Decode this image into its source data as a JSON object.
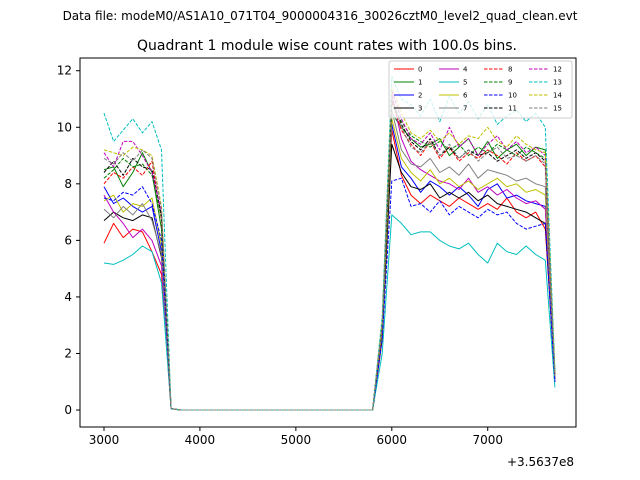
{
  "chart_data": {
    "type": "line",
    "suptitle": "Data file: modeM0/AS1A10_071T04_9000004316_30026cztM0_level2_quad_clean.evt",
    "title": "Quadrant 1 module wise count rates with 100.0s bins.",
    "xlabel": "",
    "ylabel": "",
    "x_offset_label": "+3.5637e8",
    "xlim": [
      2750,
      7920
    ],
    "ylim": [
      -0.6,
      12.45
    ],
    "xticks": [
      "3000",
      "4000",
      "5000",
      "6000",
      "7000"
    ],
    "xtick_values": [
      3000,
      4000,
      5000,
      6000,
      7000
    ],
    "yticks": [
      "0",
      "2",
      "4",
      "6",
      "8",
      "10",
      "12"
    ],
    "ytick_values": [
      0,
      2,
      4,
      6,
      8,
      10,
      12
    ],
    "legend_placement": "top-right",
    "gap_x": [
      3700,
      5770
    ],
    "x": [
      3000,
      3100,
      3200,
      3300,
      3400,
      3500,
      3600,
      3700,
      3800,
      5700,
      5800,
      5900,
      6000,
      6100,
      6200,
      6300,
      6400,
      6500,
      6600,
      6700,
      6800,
      6900,
      7000,
      7100,
      7200,
      7300,
      7400,
      7500,
      7600,
      7700
    ],
    "series": [
      {
        "name": "0",
        "color": "#ff0000",
        "dash": "solid",
        "values": [
          5.9,
          6.6,
          6.1,
          6.4,
          6.3,
          5.6,
          4.8,
          0.05,
          0,
          0,
          0,
          2.5,
          9.9,
          8.3,
          7.6,
          7.3,
          7.6,
          7.4,
          7.2,
          7.5,
          7.3,
          7.1,
          7.3,
          7.1,
          7.5,
          7.0,
          6.8,
          7.0,
          6.4,
          1.2
        ]
      },
      {
        "name": "1",
        "color": "#008000",
        "dash": "solid",
        "values": [
          8.5,
          8.6,
          7.9,
          8.4,
          9.1,
          8.4,
          6.4,
          0.05,
          0,
          0,
          0,
          3.0,
          10.5,
          10.0,
          9.6,
          9.3,
          9.4,
          9.6,
          9.0,
          9.3,
          9.6,
          9.0,
          9.5,
          8.9,
          9.2,
          9.4,
          9.0,
          9.3,
          9.2,
          1.2
        ]
      },
      {
        "name": "2",
        "color": "#0000ff",
        "dash": "solid",
        "values": [
          7.9,
          7.3,
          7.5,
          7.2,
          7.0,
          7.2,
          5.6,
          0.05,
          0,
          0,
          0,
          2.7,
          10.1,
          8.6,
          8.2,
          7.7,
          8.1,
          7.9,
          7.6,
          7.9,
          7.6,
          7.2,
          7.8,
          8.0,
          7.5,
          7.6,
          7.4,
          7.3,
          7.2,
          1.0
        ]
      },
      {
        "name": "3",
        "color": "#000000",
        "dash": "solid",
        "values": [
          6.7,
          7.0,
          6.8,
          6.7,
          6.9,
          6.8,
          5.4,
          0.05,
          0,
          0,
          0,
          2.6,
          9.4,
          8.4,
          7.9,
          7.8,
          8.0,
          7.5,
          7.7,
          7.5,
          7.7,
          7.4,
          7.6,
          7.3,
          7.2,
          7.1,
          7.0,
          6.8,
          6.6,
          1.1
        ]
      },
      {
        "name": "4",
        "color": "#bf00bf",
        "dash": "solid",
        "values": [
          7.6,
          7.0,
          6.6,
          6.1,
          6.4,
          6.0,
          5.1,
          0.05,
          0,
          0,
          0,
          3.0,
          11.2,
          9.6,
          8.8,
          8.5,
          8.3,
          8.1,
          8.0,
          7.8,
          8.2,
          7.7,
          7.9,
          7.6,
          7.8,
          7.5,
          7.3,
          7.4,
          7.1,
          1.0
        ]
      },
      {
        "name": "5",
        "color": "#00bfbf",
        "dash": "solid",
        "values": [
          5.2,
          5.15,
          5.3,
          5.5,
          5.8,
          5.6,
          4.5,
          0.05,
          0,
          0,
          0,
          2.0,
          6.9,
          6.6,
          6.2,
          6.3,
          6.3,
          6.0,
          5.8,
          5.7,
          5.9,
          5.5,
          5.2,
          5.9,
          5.6,
          5.5,
          5.8,
          5.5,
          5.3,
          0.8
        ]
      },
      {
        "name": "6",
        "color": "#bfbf00",
        "dash": "solid",
        "values": [
          7.4,
          7.6,
          7.0,
          7.3,
          7.2,
          7.5,
          5.8,
          0.05,
          0,
          0,
          0,
          2.8,
          10.3,
          8.9,
          8.4,
          8.1,
          8.5,
          8.0,
          8.2,
          7.9,
          8.1,
          7.8,
          8.0,
          8.2,
          7.9,
          8.0,
          7.7,
          7.8,
          7.6,
          1.1
        ]
      },
      {
        "name": "7",
        "color": "#808080",
        "dash": "solid",
        "values": [
          7.1,
          6.8,
          7.2,
          6.9,
          7.3,
          6.7,
          5.5,
          0.05,
          0,
          0,
          0,
          2.9,
          10.6,
          9.2,
          8.7,
          8.6,
          8.9,
          8.4,
          8.6,
          8.3,
          8.7,
          8.2,
          8.5,
          8.4,
          8.3,
          8.1,
          8.2,
          8.0,
          7.9,
          1.1
        ]
      },
      {
        "name": "8",
        "color": "#ff0000",
        "dash": "dashed",
        "values": [
          8.0,
          8.4,
          8.2,
          8.6,
          8.3,
          8.8,
          6.7,
          0.05,
          0,
          0,
          0,
          3.0,
          10.9,
          9.9,
          9.4,
          9.0,
          9.5,
          8.9,
          9.3,
          8.8,
          9.1,
          8.9,
          9.2,
          9.0,
          8.7,
          9.1,
          8.8,
          9.0,
          8.6,
          1.3
        ]
      },
      {
        "name": "9",
        "color": "#008000",
        "dash": "dashed",
        "values": [
          8.2,
          8.5,
          8.9,
          8.6,
          8.7,
          8.3,
          6.8,
          0.05,
          0,
          0,
          0,
          3.1,
          10.8,
          10.2,
          9.7,
          9.5,
          9.3,
          9.5,
          9.2,
          9.4,
          9.0,
          9.3,
          9.1,
          9.4,
          9.2,
          9.0,
          9.3,
          9.1,
          8.9,
          1.3
        ]
      },
      {
        "name": "10",
        "color": "#0000ff",
        "dash": "dashed",
        "values": [
          7.5,
          7.4,
          7.7,
          7.6,
          7.9,
          7.3,
          6.0,
          0.05,
          0,
          0,
          0,
          2.5,
          8.1,
          8.2,
          7.2,
          7.3,
          7.0,
          7.4,
          6.9,
          7.2,
          7.0,
          6.8,
          7.1,
          6.9,
          7.0,
          6.6,
          6.4,
          6.5,
          6.6,
          1.0
        ]
      },
      {
        "name": "11",
        "color": "#000000",
        "dash": "dashed",
        "values": [
          8.4,
          8.8,
          8.3,
          8.9,
          8.6,
          8.5,
          6.9,
          0.05,
          0,
          0,
          0,
          3.1,
          11.0,
          10.1,
          9.5,
          9.2,
          9.6,
          9.0,
          9.3,
          8.9,
          9.2,
          9.0,
          9.1,
          8.8,
          9.0,
          9.2,
          8.9,
          9.1,
          8.8,
          1.3
        ]
      },
      {
        "name": "12",
        "color": "#bf00bf",
        "dash": "dashed",
        "values": [
          9.1,
          8.6,
          9.5,
          9.5,
          9.0,
          8.4,
          7.0,
          0.05,
          0,
          0,
          0,
          3.1,
          11.3,
          10.3,
          9.6,
          9.4,
          9.8,
          9.2,
          10.0,
          9.3,
          9.6,
          9.0,
          9.4,
          9.7,
          9.2,
          9.5,
          9.1,
          9.3,
          9.0,
          1.3
        ]
      },
      {
        "name": "13",
        "color": "#00bfbf",
        "dash": "dashed",
        "values": [
          10.5,
          9.5,
          9.9,
          10.3,
          9.8,
          10.2,
          9.2,
          0.05,
          0,
          0,
          0,
          3.3,
          11.8,
          11.0,
          10.8,
          10.4,
          11.0,
          10.2,
          11.1,
          10.5,
          10.9,
          10.3,
          10.8,
          10.1,
          10.4,
          10.6,
          10.2,
          10.5,
          10.0,
          1.4
        ]
      },
      {
        "name": "14",
        "color": "#bfbf00",
        "dash": "dashed",
        "values": [
          9.2,
          9.1,
          9.0,
          9.3,
          9.2,
          9.0,
          7.2,
          0.05,
          0,
          0,
          0,
          3.1,
          11.4,
          10.5,
          9.8,
          9.6,
          9.9,
          9.5,
          9.8,
          9.4,
          9.7,
          9.6,
          10.0,
          9.5,
          9.3,
          9.7,
          9.4,
          9.2,
          9.1,
          1.3
        ]
      },
      {
        "name": "15",
        "color": "#808080",
        "dash": "dashed",
        "values": [
          8.9,
          8.7,
          9.1,
          8.8,
          9.2,
          8.9,
          7.1,
          0.05,
          0,
          0,
          0,
          3.0,
          11.1,
          10.0,
          9.3,
          9.1,
          9.5,
          9.0,
          9.4,
          8.9,
          9.2,
          8.8,
          9.1,
          9.3,
          8.9,
          9.0,
          8.8,
          9.0,
          8.7,
          1.2
        ]
      }
    ]
  }
}
